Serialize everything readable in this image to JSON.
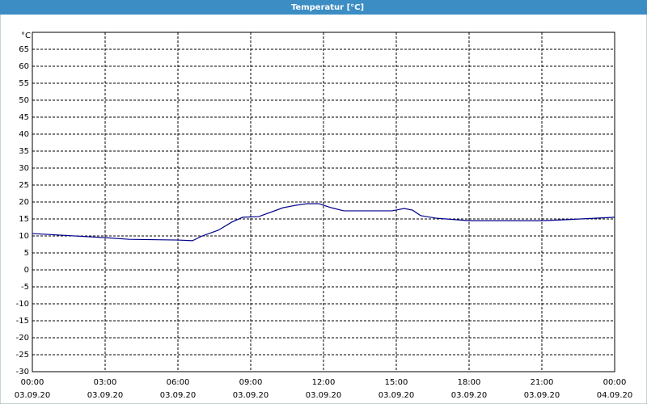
{
  "chart_data": {
    "type": "line",
    "title": "Temperatur [°C]",
    "y_label": "°C",
    "x": [
      0,
      3,
      4,
      6,
      6.6,
      7,
      7.67,
      8.2,
      8.67,
      9.33,
      10.33,
      10.83,
      11.33,
      11.8,
      12.33,
      12.83,
      14,
      14.83,
      15.33,
      15.67,
      16,
      16.67,
      18,
      21,
      22,
      24
    ],
    "series": [
      {
        "name": "Temperatur",
        "color": "#00008b",
        "values": [
          10.7,
          9.5,
          9,
          8.8,
          8.6,
          10,
          11.7,
          14,
          15.5,
          15.7,
          18.3,
          19,
          19.5,
          19.5,
          18.3,
          17.4,
          17.4,
          17.4,
          18.1,
          17.6,
          16,
          15.2,
          14.5,
          14.5,
          14.8,
          15.5
        ]
      }
    ],
    "xlim": [
      0,
      24
    ],
    "xticks": [
      {
        "value": 0,
        "label": "00:00"
      },
      {
        "value": 3,
        "label": "03:00"
      },
      {
        "value": 6,
        "label": "06:00"
      },
      {
        "value": 9,
        "label": "09:00"
      },
      {
        "value": 12,
        "label": "12:00"
      },
      {
        "value": 15,
        "label": "15:00"
      },
      {
        "value": 18,
        "label": "18:00"
      },
      {
        "value": 21,
        "label": "21:00"
      },
      {
        "value": 24,
        "label": "00:00"
      }
    ],
    "xtick_dates": [
      "03.09.20",
      "03.09.20",
      "03.09.20",
      "03.09.20",
      "03.09.20",
      "03.09.20",
      "03.09.20",
      "03.09.20",
      "04.09.20"
    ],
    "ylim": [
      -30,
      70
    ],
    "yticks": [
      -30,
      -25,
      -20,
      -15,
      -10,
      -5,
      0,
      5,
      10,
      15,
      20,
      25,
      30,
      35,
      40,
      45,
      50,
      55,
      60,
      65
    ],
    "grid": true
  }
}
